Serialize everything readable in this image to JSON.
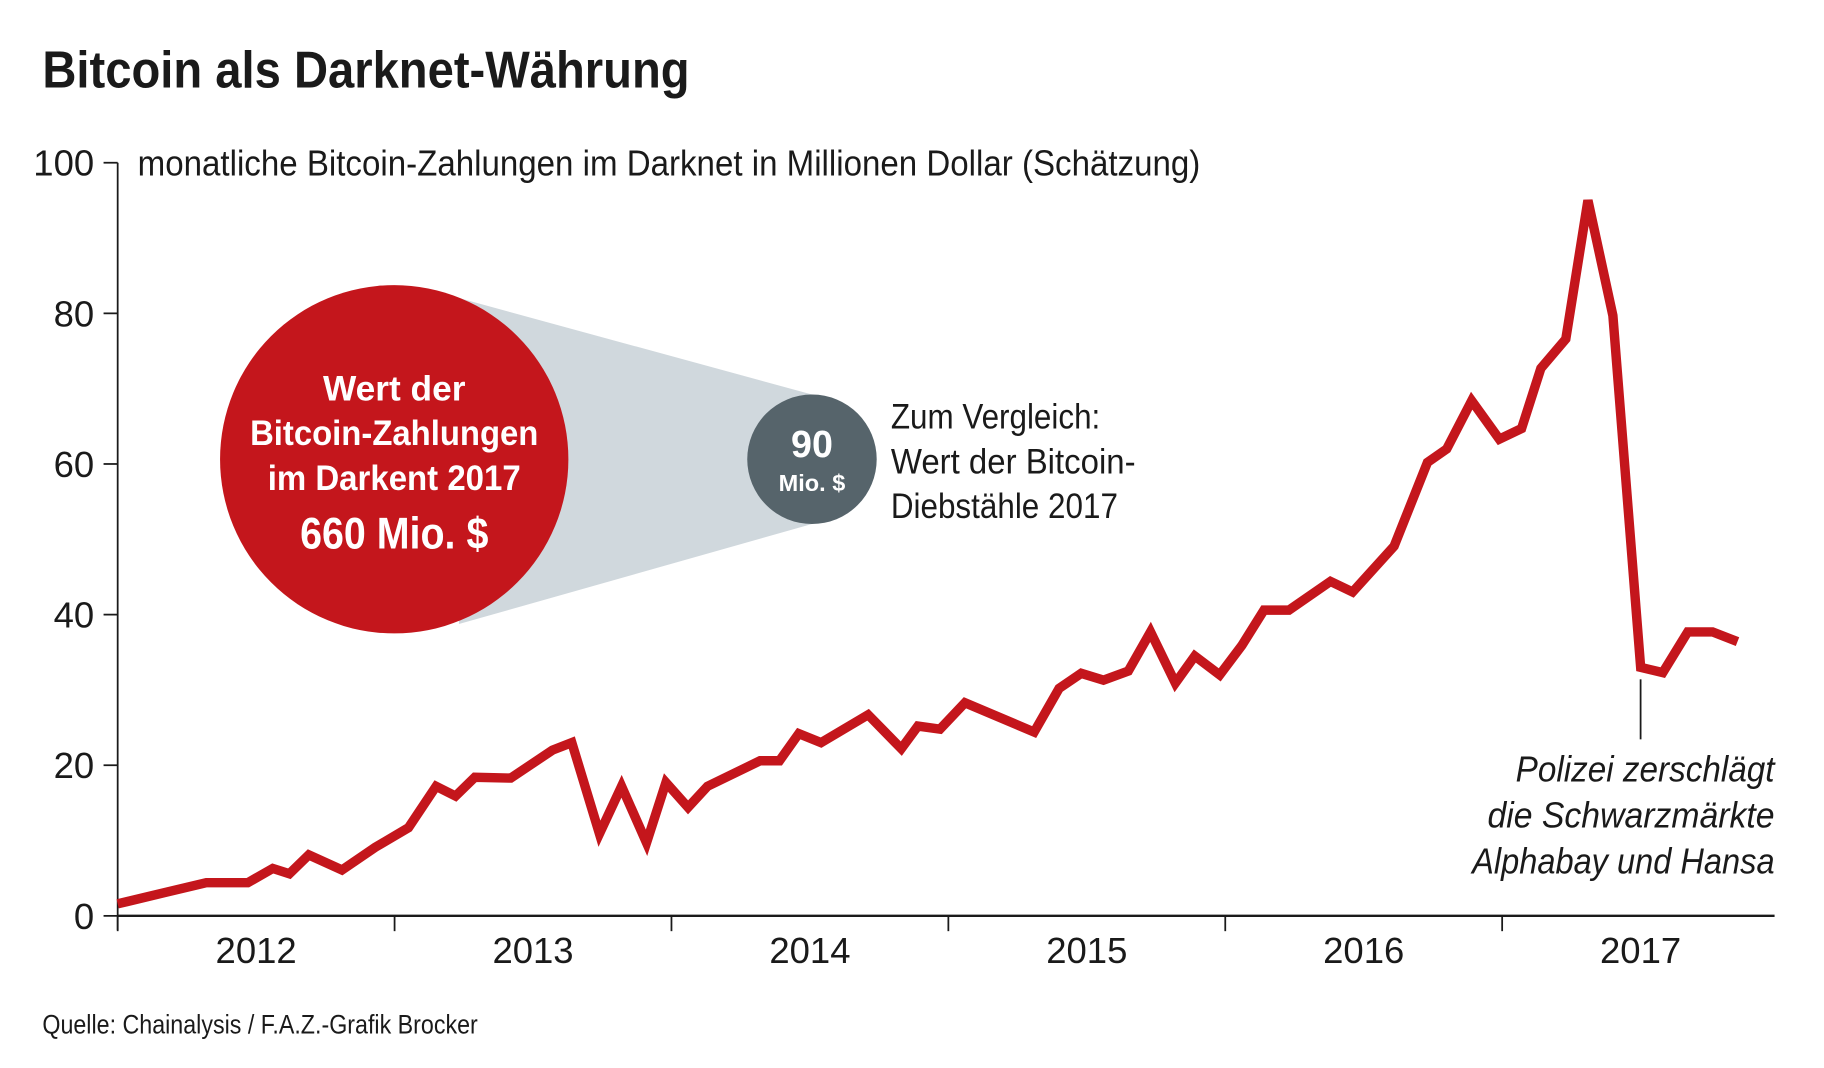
{
  "chart_data": {
    "type": "line",
    "title": "Bitcoin als Darknet-Währung",
    "ylabel": "monatliche Bitcoin-Zahlungen im Darknet in Millionen Dollar (Schätzung)",
    "xlabel": "",
    "ylim": [
      0,
      100
    ],
    "xlim": [
      2012,
      2018
    ],
    "yticks": [
      "0",
      "20",
      "40",
      "60",
      "80",
      "100"
    ],
    "xtick_labels": [
      "2012",
      "2013",
      "2014",
      "2015",
      "2016",
      "2017"
    ],
    "grid": false,
    "line_color": "#c4161c",
    "x": [
      2012.0,
      2012.17,
      2012.32,
      2012.47,
      2012.56,
      2012.62,
      2012.69,
      2012.81,
      2012.93,
      2013.05,
      2013.15,
      2013.22,
      2013.29,
      2013.42,
      2013.57,
      2013.64,
      2013.74,
      2013.82,
      2013.91,
      2013.98,
      2014.06,
      2014.13,
      2014.32,
      2014.39,
      2014.46,
      2014.54,
      2014.71,
      2014.83,
      2014.89,
      2014.97,
      2015.06,
      2015.31,
      2015.4,
      2015.48,
      2015.56,
      2015.65,
      2015.73,
      2015.82,
      2015.89,
      2015.98,
      2016.06,
      2016.14,
      2016.23,
      2016.38,
      2016.46,
      2016.61,
      2016.73,
      2016.8,
      2016.89,
      2016.99,
      2017.07,
      2017.14,
      2017.23,
      2017.31,
      2017.4,
      2017.5,
      2017.58,
      2017.67,
      2017.76,
      2017.85
    ],
    "y": [
      1.6,
      3.1,
      4.4,
      4.4,
      6.3,
      5.6,
      8.1,
      6.1,
      9.1,
      11.7,
      17.2,
      15.9,
      18.4,
      18.3,
      22.0,
      23.0,
      10.9,
      17.2,
      9.7,
      17.7,
      14.4,
      17.2,
      20.6,
      20.6,
      24.2,
      23.0,
      26.7,
      22.2,
      25.2,
      24.8,
      28.3,
      24.4,
      30.2,
      32.2,
      31.3,
      32.5,
      37.7,
      30.9,
      34.5,
      32.0,
      35.9,
      40.6,
      40.6,
      44.4,
      43.0,
      49.1,
      60.2,
      62.0,
      68.4,
      63.3,
      64.7,
      72.7,
      76.6,
      95.0,
      79.7,
      33.0,
      32.3,
      37.7,
      37.7,
      36.4
    ],
    "annotation": {
      "x": 2017.5,
      "lines": [
        "Polizei zerschlägt",
        "die Schwarzmärkte",
        "Alphabay und Hansa"
      ]
    },
    "callout": {
      "big_circle": {
        "lines": [
          "Wert der",
          "Bitcoin-Zahlungen",
          "im Darkent 2017"
        ],
        "value": "660 Mio. $",
        "color": "#c4161c"
      },
      "small_circle": {
        "value": "90",
        "unit": "Mio. $",
        "color": "#56646b"
      },
      "cone_color": "#d0d8dd",
      "comparison_lines": [
        "Zum Vergleich:",
        "Wert der Bitcoin-",
        "Diebstähle 2017"
      ]
    },
    "source": "Quelle: Chainalysis / F.A.Z.-Grafik Brocker"
  }
}
